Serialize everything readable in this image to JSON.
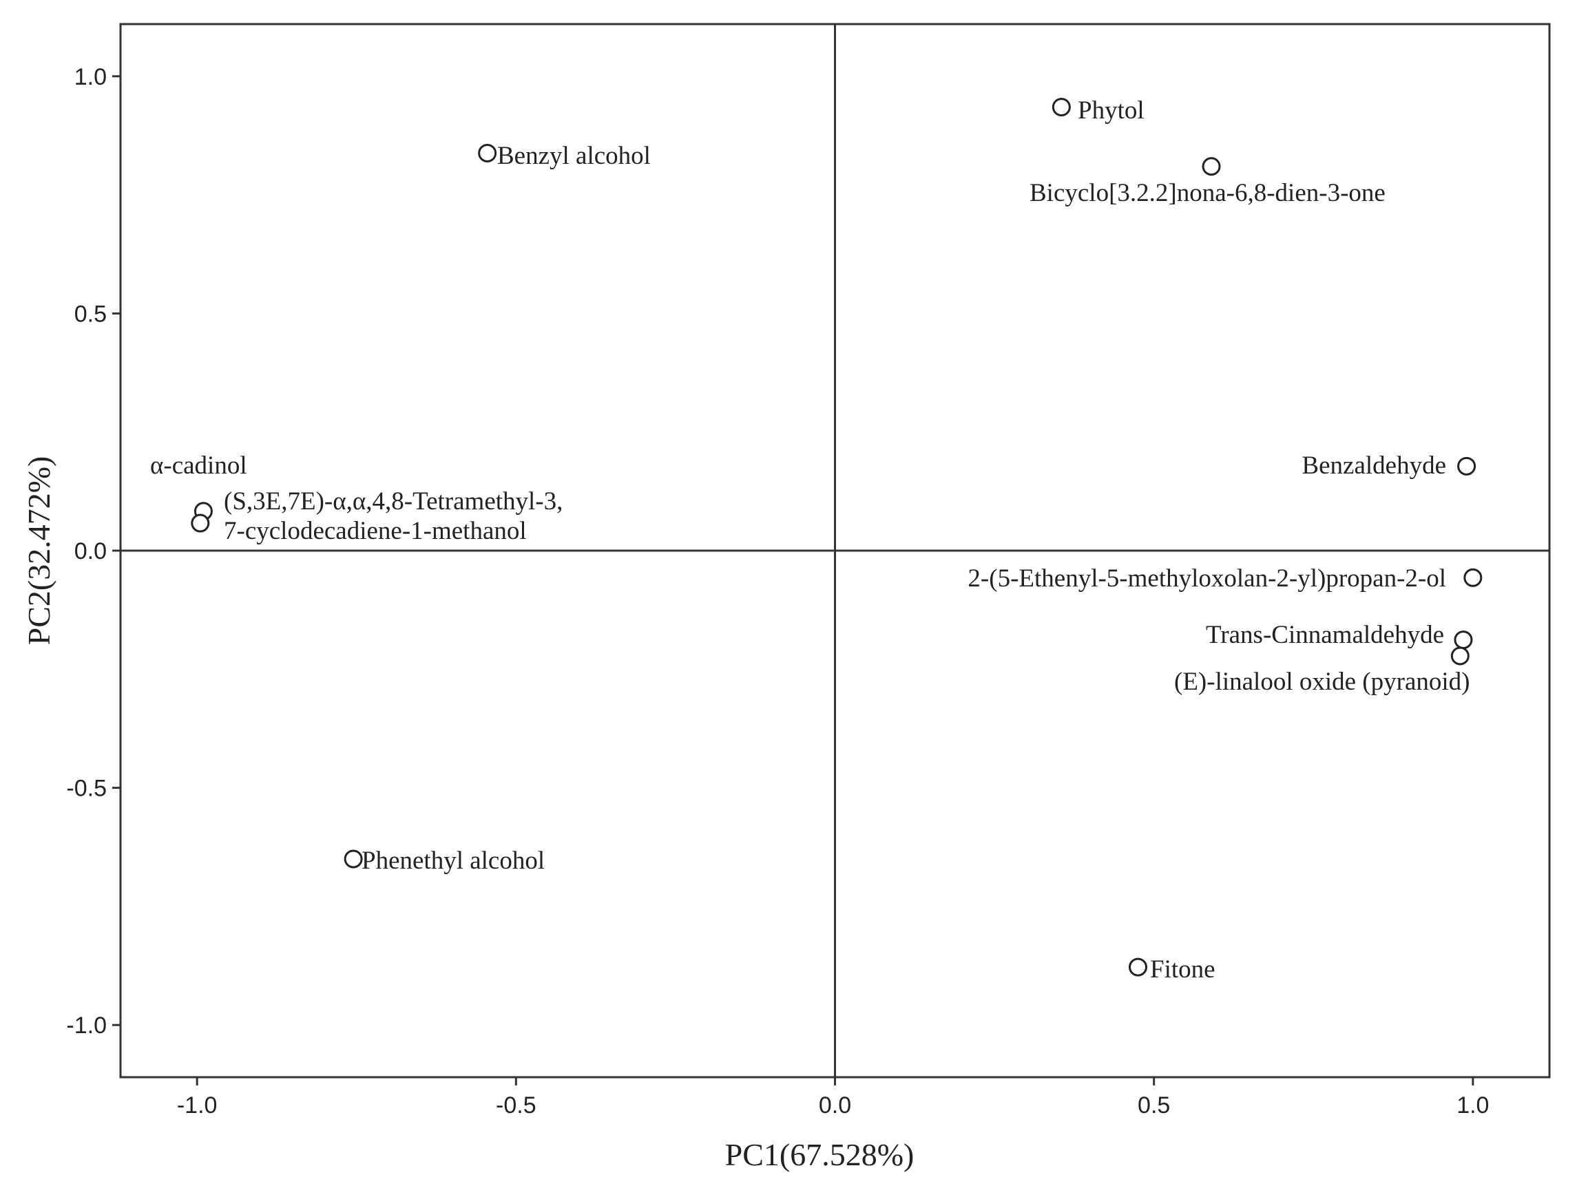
{
  "chart_data": {
    "type": "scatter",
    "xlabel": "PC1(67.528%)",
    "ylabel": "PC2(32.472%)",
    "xlim": [
      -1.12,
      1.12
    ],
    "ylim": [
      -1.11,
      1.11
    ],
    "xticks": [
      {
        "value": -1.0,
        "label": "-1.0"
      },
      {
        "value": -0.5,
        "label": "-0.5"
      },
      {
        "value": 0.0,
        "label": "0.0"
      },
      {
        "value": 0.5,
        "label": "0.5"
      },
      {
        "value": 1.0,
        "label": "1.0"
      }
    ],
    "yticks": [
      {
        "value": 1.0,
        "label": "1.0"
      },
      {
        "value": 0.5,
        "label": "0.5"
      },
      {
        "value": 0.0,
        "label": "0.0"
      },
      {
        "value": -0.5,
        "label": "-0.5"
      },
      {
        "value": -1.0,
        "label": "-1.0"
      }
    ],
    "reference_lines": {
      "x": 0,
      "y": 0
    },
    "grid": false,
    "marker": "open-circle",
    "points": [
      {
        "x": 0.355,
        "y": 0.935
      },
      {
        "x": 0.59,
        "y": 0.81
      },
      {
        "x": -0.545,
        "y": 0.838
      },
      {
        "x": 0.99,
        "y": 0.178
      },
      {
        "x": -0.99,
        "y": 0.083
      },
      {
        "x": -0.995,
        "y": 0.058
      },
      {
        "x": 1.0,
        "y": -0.057
      },
      {
        "x": 0.985,
        "y": -0.188
      },
      {
        "x": 0.98,
        "y": -0.222
      },
      {
        "x": -0.755,
        "y": -0.65
      },
      {
        "x": 0.475,
        "y": -0.878
      }
    ],
    "labels": [
      {
        "text": "Phytol"
      },
      {
        "text": "Bicyclo[3.2.2]nona-6,8-dien-3-one"
      },
      {
        "text": "Benzyl alcohol"
      },
      {
        "text": "Benzaldehyde"
      },
      {
        "text": "α-cadinol"
      },
      {
        "text": "(S,3E,7E)-α,α,4,8-Tetramethyl-3,"
      },
      {
        "text": "7-cyclodecadiene-1-methanol"
      },
      {
        "text": "2-(5-Ethenyl-5-methyloxolan-2-yl)propan-2-ol"
      },
      {
        "text": "Trans-Cinnamaldehyde"
      },
      {
        "text": "(E)-linalool oxide (pyranoid)"
      },
      {
        "text": "Phenethyl alcohol"
      },
      {
        "text": "Fitone"
      }
    ]
  }
}
